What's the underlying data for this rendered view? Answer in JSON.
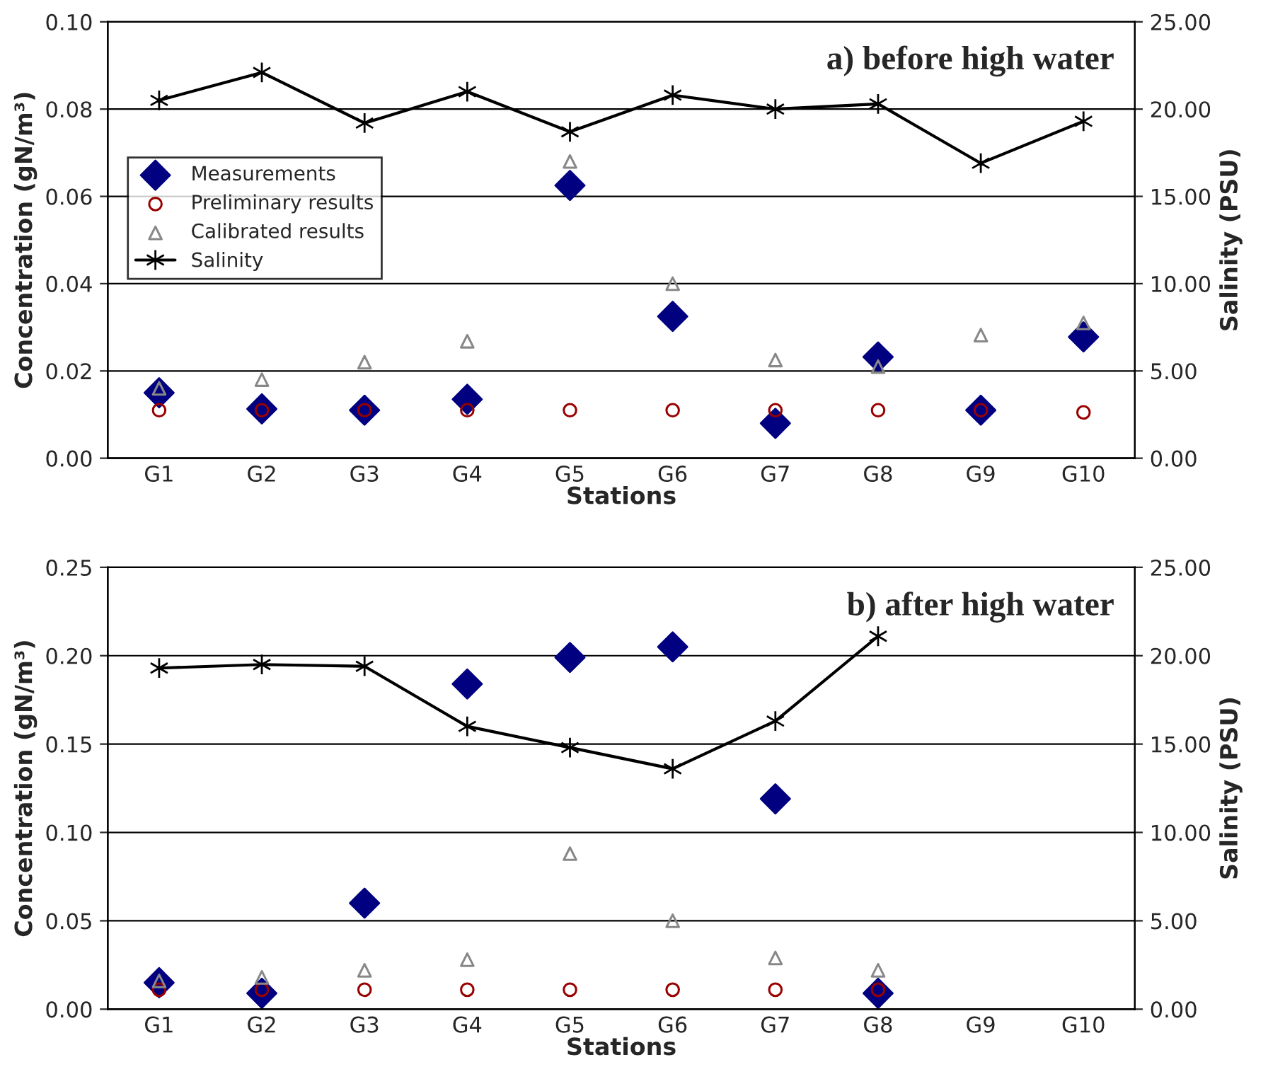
{
  "chart_data": [
    {
      "type": "scatter",
      "title": "a) before high water",
      "xlabel": "Stations",
      "ylabel": "Concentration (gN/m³)",
      "y2label": "Salinity (PSU)",
      "categories": [
        "G1",
        "G2",
        "G3",
        "G4",
        "G5",
        "G6",
        "G7",
        "G8",
        "G9",
        "G10"
      ],
      "series": [
        {
          "name": "Measurements",
          "marker": "diamond",
          "color": "#000080",
          "values": [
            0.015,
            0.0113,
            0.011,
            0.0135,
            0.0625,
            0.0325,
            0.008,
            0.0232,
            0.011,
            0.0278
          ]
        },
        {
          "name": "Preliminary results",
          "marker": "circle",
          "color": "#990000",
          "values": [
            0.011,
            0.011,
            0.011,
            0.011,
            0.011,
            0.011,
            0.011,
            0.011,
            0.011,
            0.0105
          ]
        },
        {
          "name": "Calibrated results",
          "marker": "triangle",
          "color": "#888888",
          "values": [
            0.016,
            0.018,
            0.022,
            0.0268,
            0.068,
            0.04,
            0.0225,
            0.021,
            0.0282,
            0.031
          ]
        },
        {
          "name": "Salinity",
          "type": "line",
          "marker": "cross",
          "axis": "y2",
          "color": "#000000",
          "values": [
            20.5,
            22.1,
            19.2,
            21.0,
            18.7,
            20.8,
            20.0,
            20.3,
            16.9,
            19.3
          ]
        }
      ],
      "ylim": [
        0,
        0.1
      ],
      "yticks": [
        {
          "value": 0,
          "label": "0.00"
        },
        {
          "value": 0.02,
          "label": "0.02"
        },
        {
          "value": 0.04,
          "label": "0.04"
        },
        {
          "value": 0.06,
          "label": "0.06"
        },
        {
          "value": 0.08,
          "label": "0.08"
        },
        {
          "value": 0.1,
          "label": "0.10"
        }
      ],
      "y2lim": [
        0,
        25
      ],
      "y2ticks": [
        {
          "value": 0,
          "label": "0.00"
        },
        {
          "value": 5,
          "label": "5.00"
        },
        {
          "value": 10,
          "label": "10.00"
        },
        {
          "value": 15,
          "label": "15.00"
        },
        {
          "value": 20,
          "label": "20.00"
        },
        {
          "value": 25,
          "label": "25.00"
        }
      ],
      "grid": "y",
      "legend": "left"
    },
    {
      "type": "scatter",
      "title": "b) after high water",
      "xlabel": "Stations",
      "ylabel": "Concentration (gN/m³)",
      "y2label": "Salinity (PSU)",
      "categories": [
        "G1",
        "G2",
        "G3",
        "G4",
        "G5",
        "G6",
        "G7",
        "G8",
        "G9",
        "G10"
      ],
      "series": [
        {
          "marker": "diamond",
          "color": "#000080",
          "values": [
            0.015,
            0.009,
            0.06,
            0.184,
            0.199,
            0.205,
            0.119,
            0.009,
            null,
            null
          ]
        },
        {
          "marker": "circle",
          "color": "#990000",
          "values": [
            0.011,
            0.011,
            0.011,
            0.011,
            0.011,
            0.011,
            0.011,
            0.011,
            null,
            null
          ]
        },
        {
          "marker": "triangle",
          "color": "#888888",
          "values": [
            0.016,
            0.018,
            0.022,
            0.028,
            0.088,
            0.05,
            0.029,
            0.022,
            null,
            null
          ]
        },
        {
          "type": "line",
          "marker": "cross",
          "axis": "y2",
          "color": "#000000",
          "values": [
            19.3,
            19.5,
            19.4,
            16.0,
            14.8,
            13.6,
            16.3,
            21.1,
            null,
            null
          ]
        }
      ],
      "ylim": [
        0,
        0.25
      ],
      "yticks": [
        {
          "value": 0,
          "label": "0.00"
        },
        {
          "value": 0.05,
          "label": "0.05"
        },
        {
          "value": 0.1,
          "label": "0.10"
        },
        {
          "value": 0.15,
          "label": "0.15"
        },
        {
          "value": 0.2,
          "label": "0.20"
        },
        {
          "value": 0.25,
          "label": "0.25"
        }
      ],
      "y2lim": [
        0,
        25
      ],
      "y2ticks": [
        {
          "value": 0,
          "label": "0.00"
        },
        {
          "value": 5,
          "label": "5.00"
        },
        {
          "value": 10,
          "label": "10.00"
        },
        {
          "value": 15,
          "label": "15.00"
        },
        {
          "value": 20,
          "label": "20.00"
        },
        {
          "value": 25,
          "label": "25.00"
        }
      ],
      "grid": "y"
    }
  ]
}
